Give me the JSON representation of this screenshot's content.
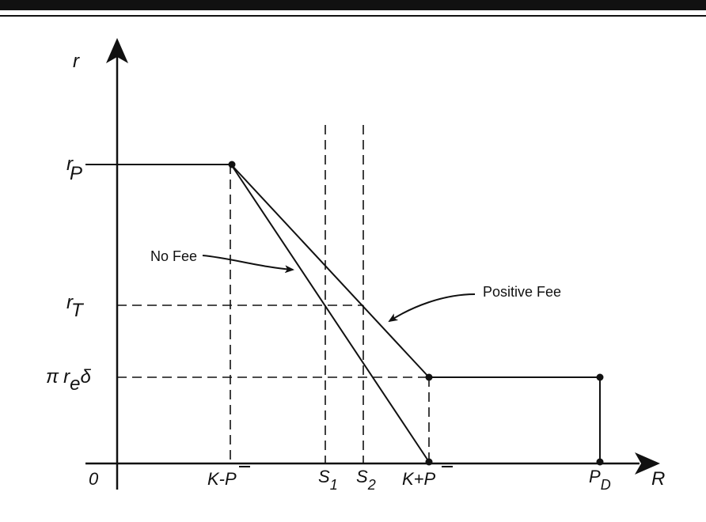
{
  "labels": {
    "y_axis": "r",
    "x_axis": "R",
    "origin": "0",
    "rP_main": "r",
    "rP_sub": "P",
    "rT_main": "r",
    "rT_sub": "T",
    "pi": "π",
    "re_main": "r",
    "re_sub": "e",
    "delta": "δ",
    "k_minus": "K-P",
    "s1_main": "S",
    "s1_sub": "1",
    "s2_main": "S",
    "s2_sub": "2",
    "k_plus": "K+P",
    "pd_main": "P",
    "pd_sub": "D",
    "no_fee": "No Fee",
    "positive_fee": "Positive Fee"
  },
  "colors": {
    "line": "#111111",
    "background": "#ffffff"
  }
}
